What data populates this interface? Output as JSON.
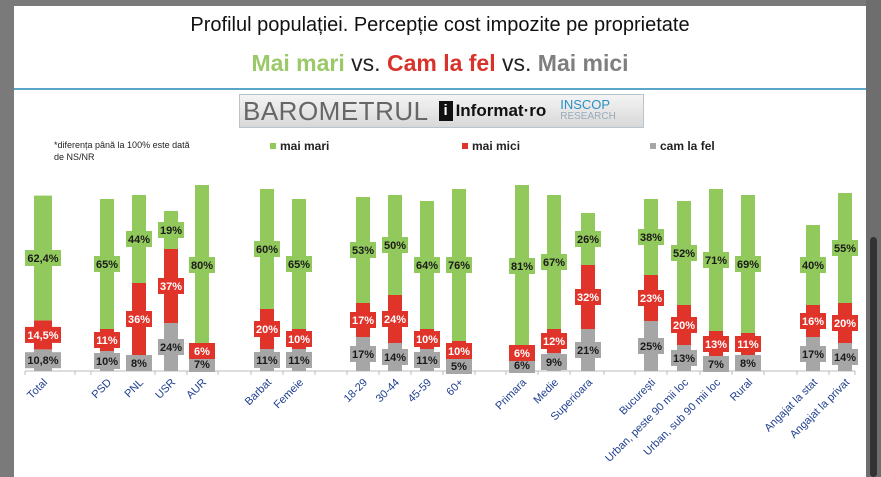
{
  "header": {
    "title": "Profilul populației. Percepție cost impozite pe proprietate",
    "subtitle_parts": [
      "Mai mari",
      " vs. ",
      "Cam la fel",
      " vs. ",
      "Mai mici"
    ],
    "subtitle_colors": [
      "#9bc96a",
      "#d9322b",
      "#7f7f7f"
    ]
  },
  "logo": {
    "baro": "BAROMETRUL",
    "i": "i",
    "informat": "Informat·ro",
    "inscop": "INSCOP",
    "research": "RESEARCH"
  },
  "note": "*diferența până la 100% este dată de NS/NR",
  "chart_data": {
    "type": "bar",
    "stacked": true,
    "categories": [
      "Total",
      "PSD",
      "PNL",
      "USR",
      "AUR",
      "Barbat",
      "Femeie",
      "18-29",
      "30-44",
      "45-59",
      "60+",
      "Primara",
      "Medie",
      "Superioara",
      "București",
      "Urban, peste 90 mii loc",
      "Urban, sub 90 mii loc",
      "Rural",
      "Angajat la stat",
      "Angajat la privat"
    ],
    "groups": [
      [
        0
      ],
      [
        1,
        2,
        3,
        4
      ],
      [
        5,
        6
      ],
      [
        7,
        8,
        9,
        10
      ],
      [
        11,
        12,
        13
      ],
      [
        14,
        15,
        16,
        17
      ],
      [
        18,
        19
      ]
    ],
    "legend_position": "top",
    "grid": false,
    "ylim": [
      0,
      100
    ],
    "series": [
      {
        "name": "cam la fel",
        "color": "#a6a6a6",
        "values": [
          10.8,
          10,
          8,
          24,
          7,
          11,
          11,
          17,
          14,
          11,
          5,
          6,
          9,
          21,
          25,
          13,
          7,
          8,
          17,
          14
        ],
        "labels": [
          "10,8%",
          "10%",
          "8%",
          "24%",
          "7%",
          "11%",
          "11%",
          "17%",
          "14%",
          "11%",
          "5%",
          "6%",
          "9%",
          "21%",
          "25%",
          "13%",
          "7%",
          "8%",
          "17%",
          "14%"
        ]
      },
      {
        "name": "mai mici",
        "color": "#e0332a",
        "values": [
          14.5,
          11,
          36,
          37,
          6,
          20,
          10,
          17,
          24,
          10,
          10,
          6,
          12,
          32,
          23,
          20,
          13,
          11,
          16,
          20
        ],
        "labels": [
          "14,5%",
          "11%",
          "36%",
          "37%",
          "6%",
          "20%",
          "10%",
          "17%",
          "24%",
          "10%",
          "10%",
          "6%",
          "12%",
          "32%",
          "23%",
          "20%",
          "13%",
          "11%",
          "16%",
          "20%"
        ]
      },
      {
        "name": "mai mari",
        "color": "#92c95c",
        "values": [
          62.4,
          65,
          44,
          19,
          80,
          60,
          65,
          53,
          50,
          64,
          76,
          81,
          67,
          26,
          38,
          52,
          71,
          69,
          40,
          55
        ],
        "labels": [
          "62,4%",
          "65%",
          "44%",
          "19%",
          "80%",
          "60%",
          "65%",
          "53%",
          "50%",
          "64%",
          "76%",
          "81%",
          "67%",
          "26%",
          "38%",
          "52%",
          "71%",
          "69%",
          "40%",
          "55%"
        ]
      }
    ],
    "legend_order": [
      "mai mari",
      "mai mici",
      "cam la fel"
    ]
  }
}
